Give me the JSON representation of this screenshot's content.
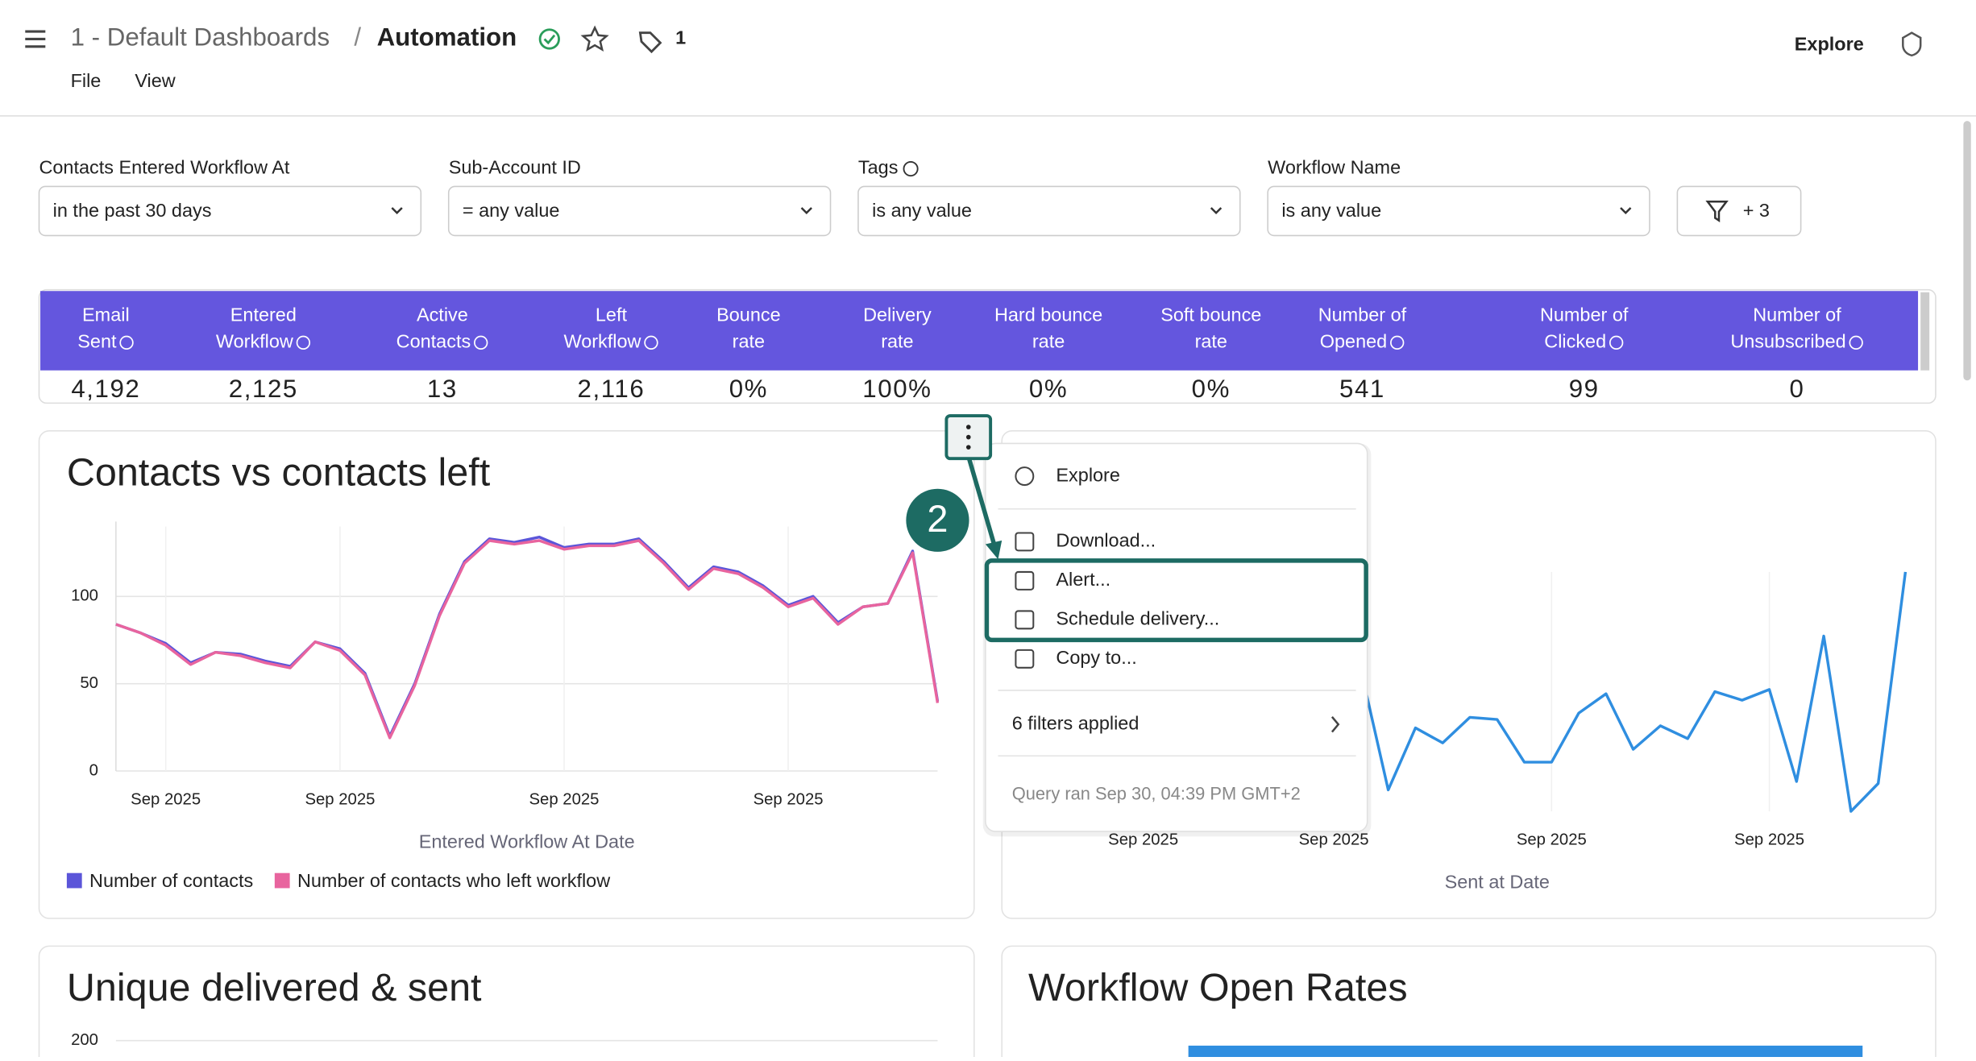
{
  "header": {
    "breadcrumb_parent": "1 - Default Dashboards",
    "separator": "/",
    "title": "Automation",
    "tag_count": 1,
    "menu": [
      "File",
      "View"
    ],
    "explore": "Explore"
  },
  "filters": [
    {
      "label": "Contacts Entered Workflow At",
      "value": "in the past 30 days"
    },
    {
      "label": "Sub-Account ID",
      "value": "= any value"
    },
    {
      "label": "Tags",
      "value": "is any value"
    },
    {
      "label": "Workflow Name",
      "value": "is any value"
    }
  ],
  "more_filters": "+ 3",
  "kpi_table": {
    "headers": [
      [
        "Email",
        "Sent"
      ],
      [
        "Entered",
        "Workflow"
      ],
      [
        "Active",
        "Contacts"
      ],
      [
        "Left",
        "Workflow"
      ],
      [
        "Bounce",
        "rate"
      ],
      [
        "Delivery",
        "rate"
      ],
      [
        "Hard bounce",
        "rate"
      ],
      [
        "Soft bounce",
        "rate"
      ],
      [
        "Number of",
        "Opened"
      ],
      [
        "Number of",
        "Clicked"
      ],
      [
        "Number of",
        "Unsubscribed"
      ]
    ],
    "values": [
      "4,192",
      "2,125",
      "13",
      "2,116",
      "0%",
      "100%",
      "0%",
      "0%",
      "541",
      "99",
      "0"
    ]
  },
  "charts": [
    {
      "type": "line",
      "title": "Contacts vs contacts left",
      "x_label": "Entered Workflow At Date",
      "categories": [
        null,
        null,
        "Sep 2025",
        null,
        null,
        null,
        null,
        null,
        null,
        "Sep 2025",
        null,
        null,
        null,
        null,
        null,
        null,
        null,
        null,
        "Sep 2025",
        null,
        null,
        null,
        null,
        null,
        null,
        null,
        null,
        "Sep 2025",
        null,
        null,
        null,
        null,
        null,
        null
      ],
      "series": [
        {
          "name": "Number of contacts",
          "color": "#5b55d9",
          "values": [
            84,
            79,
            73,
            62,
            68,
            67,
            63,
            60,
            74,
            70,
            56,
            20,
            50,
            90,
            120,
            133,
            131,
            134,
            128,
            130,
            130,
            133,
            120,
            105,
            117,
            114,
            106,
            95,
            100,
            85,
            94,
            96,
            126,
            40
          ]
        },
        {
          "name": "Number of contacts who left workflow",
          "color": "#e8649e",
          "values": [
            84,
            79,
            72,
            61,
            68,
            66,
            62,
            59,
            74,
            69,
            55,
            19,
            49,
            89,
            119,
            132,
            130,
            132,
            127,
            129,
            129,
            132,
            119,
            104,
            116,
            113,
            105,
            94,
            99,
            84,
            94,
            96,
            125,
            39
          ]
        }
      ],
      "ylim": [
        0,
        140
      ],
      "yticks": [
        0,
        50,
        100
      ],
      "grid": true
    },
    {
      "type": "line",
      "x_label": "Sent at Date",
      "categories": [
        null,
        null,
        "Sep 2025",
        null,
        null,
        null,
        null,
        null,
        null,
        "Sep 2025",
        null,
        null,
        null,
        null,
        null,
        null,
        null,
        "Sep 2025",
        null,
        null,
        null,
        null,
        null,
        null,
        null,
        "Sep 2025",
        null,
        null,
        null,
        null,
        null
      ],
      "series": [
        {
          "color": "#2f8ee0",
          "values": [
            null,
            null,
            null,
            null,
            null,
            null,
            null,
            null,
            null,
            null,
            140,
            84,
            113,
            106,
            118,
            117,
            97,
            97,
            120,
            129,
            103,
            114,
            108,
            130,
            126,
            131,
            88,
            156,
            74,
            87,
            186
          ]
        }
      ]
    },
    {
      "type": "bar",
      "title": "Unique delivered & sent",
      "yticks": [
        200
      ]
    },
    {
      "type": "bar",
      "title": "Workflow Open Rates"
    }
  ],
  "context_menu": {
    "items": [
      "Explore",
      "Download...",
      "Alert...",
      "Schedule delivery...",
      "Copy to...",
      "6 filters applied"
    ],
    "footer": "Query ran Sep 30, 04:39 PM GMT+2"
  },
  "callout_step": "2"
}
